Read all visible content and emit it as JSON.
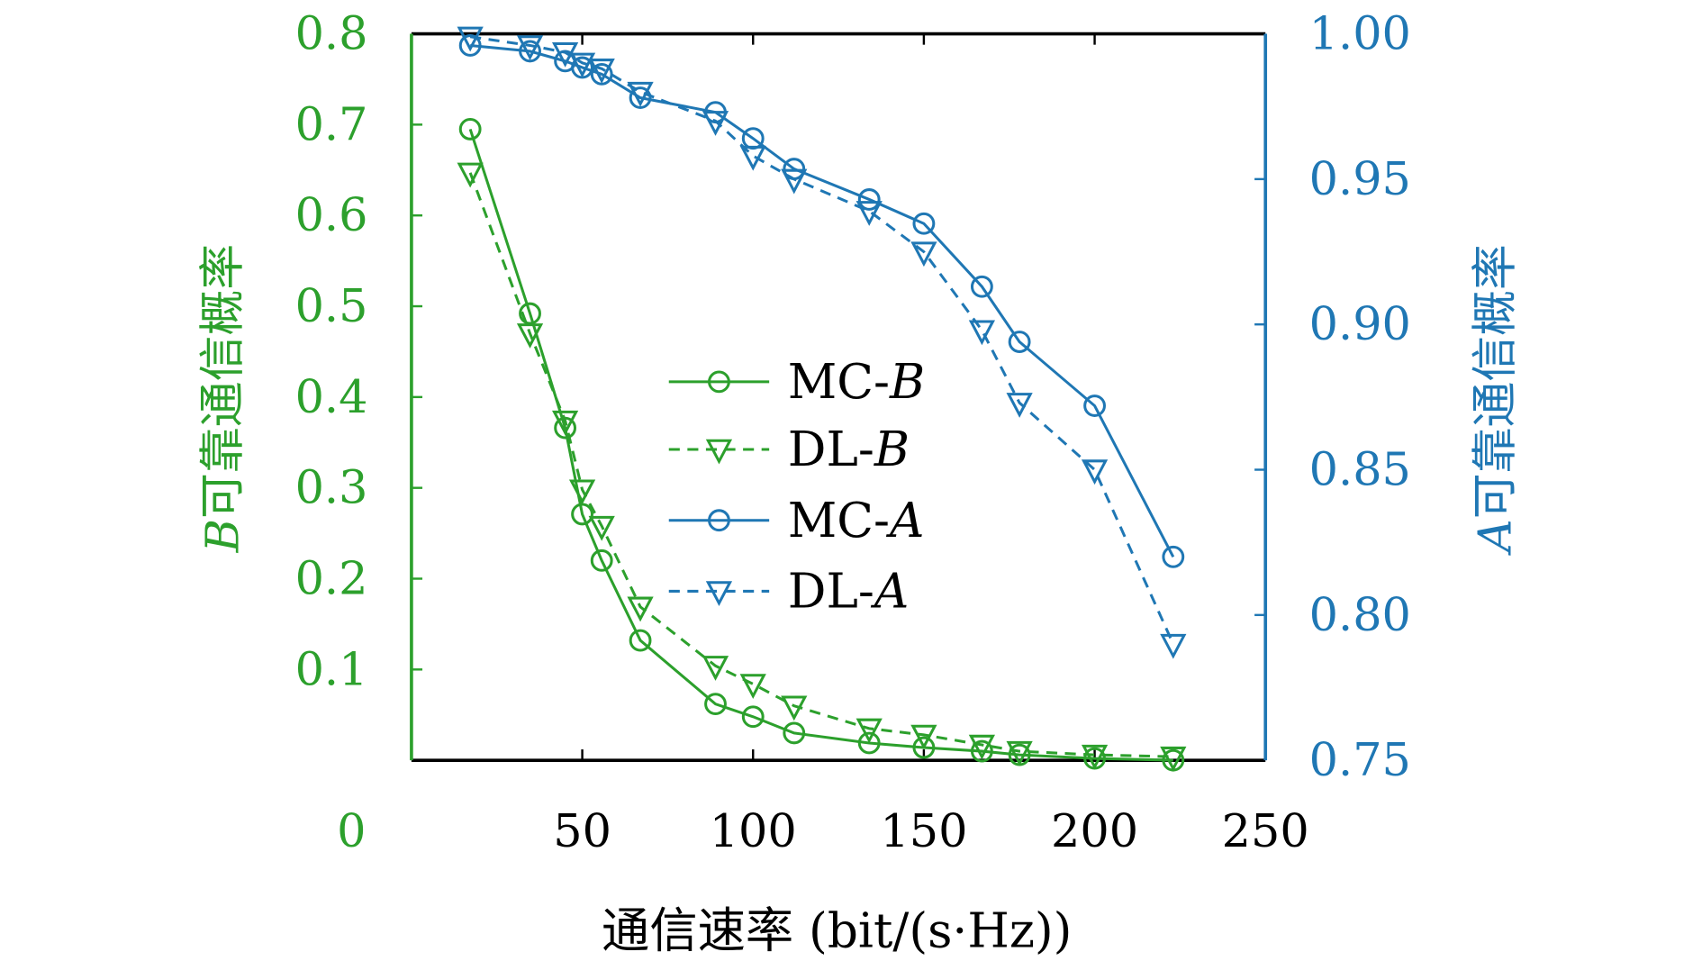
{
  "chart_data": {
    "type": "line",
    "xlabel": "通信速率 (bit/(s·Hz))",
    "ylabel_left": "B可靠通信概率",
    "ylabel_left_italic": "B",
    "ylabel_left_rest": "可靠通信概率",
    "ylabel_right_italic": "A",
    "ylabel_right_rest": "可靠通信概率",
    "xlim": [
      0,
      250
    ],
    "ylim_left": [
      0,
      0.8
    ],
    "ylim_right": [
      0.75,
      1.0
    ],
    "xticks": [
      "0",
      "50",
      "100",
      "150",
      "200",
      "250"
    ],
    "yticks_left": [
      "0.1",
      "0.2",
      "0.3",
      "0.4",
      "0.5",
      "0.6",
      "0.7",
      "0.8"
    ],
    "yticks_right": [
      "0.75",
      "0.80",
      "0.85",
      "0.90",
      "0.95",
      "1.00"
    ],
    "legend_position": "center",
    "colors": {
      "green": "#2ca02c",
      "blue": "#1f77b4"
    },
    "x": [
      17.2,
      34.7,
      45,
      50,
      55.7,
      67,
      89,
      100,
      112,
      134,
      150,
      167,
      178,
      200,
      223
    ],
    "series": [
      {
        "name": "MC-B",
        "axis": "left",
        "color": "#2ca02c",
        "marker": "circle",
        "dash": false,
        "values": [
          0.695,
          0.492,
          0.366,
          0.271,
          0.22,
          0.132,
          0.062,
          0.048,
          0.03,
          0.019,
          0.014,
          0.01,
          0.006,
          0.002,
          0.0
        ]
      },
      {
        "name": "DL-B",
        "axis": "left",
        "color": "#2ca02c",
        "marker": "triangle",
        "dash": true,
        "values": [
          0.647,
          0.47,
          0.374,
          0.298,
          0.258,
          0.169,
          0.104,
          0.084,
          0.06,
          0.035,
          0.028,
          0.017,
          0.01,
          0.006,
          0.004
        ]
      },
      {
        "name": "MC-A",
        "axis": "right",
        "color": "#1f77b4",
        "marker": "circle",
        "dash": false,
        "values": [
          0.996,
          0.994,
          0.9906,
          0.9884,
          0.9861,
          0.978,
          0.973,
          0.964,
          0.9535,
          0.943,
          0.9347,
          0.913,
          0.894,
          0.872,
          0.82
        ]
      },
      {
        "name": "DL-A",
        "axis": "right",
        "color": "#1f77b4",
        "marker": "triangle",
        "dash": true,
        "values": [
          0.999,
          0.996,
          0.9936,
          0.99,
          0.988,
          0.98,
          0.97,
          0.958,
          0.95,
          0.939,
          0.925,
          0.898,
          0.873,
          0.85,
          0.79
        ]
      }
    ]
  }
}
